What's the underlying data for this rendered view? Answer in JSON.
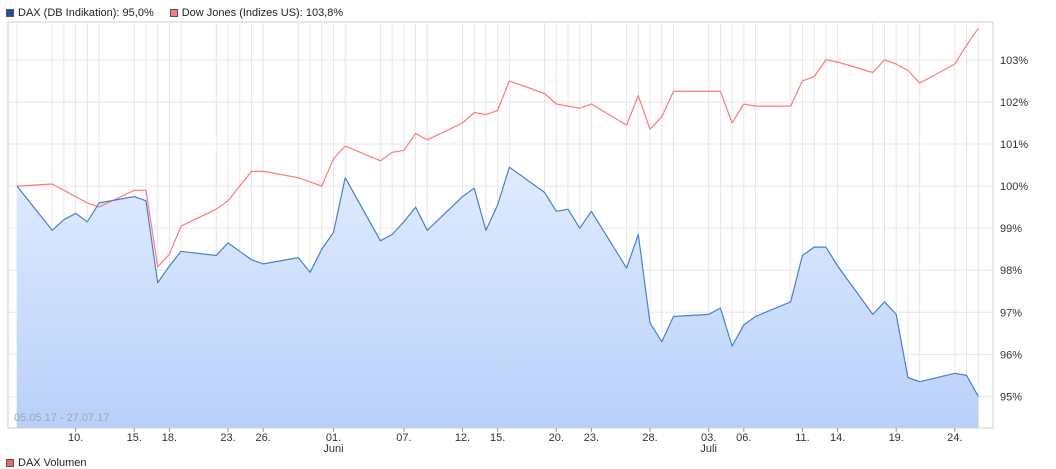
{
  "legend": {
    "dax": {
      "label": "DAX (DB Indikation): 95,0%",
      "color": "#1f4fa6"
    },
    "dow": {
      "label": "Dow Jones (Indizes US): 103,8%",
      "color": "#ff7b7b"
    }
  },
  "date_range": "05.05.17 - 27.07.17",
  "volume_legend": {
    "label": "DAX Volumen",
    "color": "#e8705a"
  },
  "chart_data": {
    "type": "line",
    "x_range": [
      "2017-05-05",
      "2017-07-27"
    ],
    "y_range": [
      94.25,
      103.9
    ],
    "y_ticks": [
      {
        "value": 95,
        "label": "95%"
      },
      {
        "value": 96,
        "label": "96%"
      },
      {
        "value": 97,
        "label": "97%"
      },
      {
        "value": 98,
        "label": "98%"
      },
      {
        "value": 99,
        "label": "99%"
      },
      {
        "value": 100,
        "label": "100%"
      },
      {
        "value": 101,
        "label": "101%"
      },
      {
        "value": 102,
        "label": "102%"
      },
      {
        "value": 103,
        "label": "103%"
      }
    ],
    "x_ticks": [
      {
        "date": "2017-05-10",
        "label": "10.",
        "sub": ""
      },
      {
        "date": "2017-05-15",
        "label": "15.",
        "sub": ""
      },
      {
        "date": "2017-05-18",
        "label": "18.",
        "sub": ""
      },
      {
        "date": "2017-05-23",
        "label": "23.",
        "sub": ""
      },
      {
        "date": "2017-05-26",
        "label": "26.",
        "sub": ""
      },
      {
        "date": "2017-06-01",
        "label": "01.",
        "sub": "Juni"
      },
      {
        "date": "2017-06-07",
        "label": "07.",
        "sub": ""
      },
      {
        "date": "2017-06-12",
        "label": "12.",
        "sub": ""
      },
      {
        "date": "2017-06-15",
        "label": "15.",
        "sub": ""
      },
      {
        "date": "2017-06-20",
        "label": "20.",
        "sub": ""
      },
      {
        "date": "2017-06-23",
        "label": "23.",
        "sub": ""
      },
      {
        "date": "2017-06-28",
        "label": "28.",
        "sub": ""
      },
      {
        "date": "2017-07-03",
        "label": "03.",
        "sub": "Juli"
      },
      {
        "date": "2017-07-06",
        "label": "06.",
        "sub": ""
      },
      {
        "date": "2017-07-11",
        "label": "11.",
        "sub": ""
      },
      {
        "date": "2017-07-14",
        "label": "14.",
        "sub": ""
      },
      {
        "date": "2017-07-19",
        "label": "19.",
        "sub": ""
      },
      {
        "date": "2017-07-24",
        "label": "24.",
        "sub": ""
      }
    ],
    "series": [
      {
        "name": "Dow Jones (Indizes US)",
        "color": "#ff7b7b",
        "points": [
          [
            "2017-05-05",
            100.0
          ],
          [
            "2017-05-08",
            100.05
          ],
          [
            "2017-05-09",
            99.9
          ],
          [
            "2017-05-10",
            99.75
          ],
          [
            "2017-05-11",
            99.6
          ],
          [
            "2017-05-12",
            99.5
          ],
          [
            "2017-05-15",
            99.9
          ],
          [
            "2017-05-16",
            99.9
          ],
          [
            "2017-05-17",
            98.08
          ],
          [
            "2017-05-18",
            98.38
          ],
          [
            "2017-05-19",
            99.05
          ],
          [
            "2017-05-22",
            99.45
          ],
          [
            "2017-05-23",
            99.65
          ],
          [
            "2017-05-24",
            100.0
          ],
          [
            "2017-05-25",
            100.35
          ],
          [
            "2017-05-26",
            100.35
          ],
          [
            "2017-05-29",
            100.2
          ],
          [
            "2017-05-30",
            100.1
          ],
          [
            "2017-05-31",
            100.0
          ],
          [
            "2017-06-01",
            100.65
          ],
          [
            "2017-06-02",
            100.95
          ],
          [
            "2017-06-05",
            100.6
          ],
          [
            "2017-06-06",
            100.8
          ],
          [
            "2017-06-07",
            100.85
          ],
          [
            "2017-06-08",
            101.25
          ],
          [
            "2017-06-09",
            101.1
          ],
          [
            "2017-06-12",
            101.5
          ],
          [
            "2017-06-13",
            101.75
          ],
          [
            "2017-06-14",
            101.7
          ],
          [
            "2017-06-15",
            101.8
          ],
          [
            "2017-06-16",
            102.5
          ],
          [
            "2017-06-19",
            102.2
          ],
          [
            "2017-06-20",
            101.95
          ],
          [
            "2017-06-21",
            101.9
          ],
          [
            "2017-06-22",
            101.85
          ],
          [
            "2017-06-23",
            101.95
          ],
          [
            "2017-06-26",
            101.45
          ],
          [
            "2017-06-27",
            102.15
          ],
          [
            "2017-06-28",
            101.35
          ],
          [
            "2017-06-29",
            101.65
          ],
          [
            "2017-06-30",
            102.25
          ],
          [
            "2017-07-03",
            102.25
          ],
          [
            "2017-07-04",
            102.25
          ],
          [
            "2017-07-05",
            101.5
          ],
          [
            "2017-07-06",
            101.95
          ],
          [
            "2017-07-07",
            101.9
          ],
          [
            "2017-07-10",
            101.9
          ],
          [
            "2017-07-11",
            102.5
          ],
          [
            "2017-07-12",
            102.6
          ],
          [
            "2017-07-13",
            103.0
          ],
          [
            "2017-07-14",
            102.95
          ],
          [
            "2017-07-17",
            102.7
          ],
          [
            "2017-07-18",
            103.0
          ],
          [
            "2017-07-19",
            102.9
          ],
          [
            "2017-07-20",
            102.75
          ],
          [
            "2017-07-21",
            102.45
          ],
          [
            "2017-07-24",
            102.9
          ],
          [
            "2017-07-25",
            103.35
          ],
          [
            "2017-07-26",
            103.75
          ]
        ]
      },
      {
        "name": "DAX (DB Indikation)",
        "color": "#4a7fd0",
        "points": [
          [
            "2017-05-05",
            100.0
          ],
          [
            "2017-05-08",
            98.95
          ],
          [
            "2017-05-09",
            99.2
          ],
          [
            "2017-05-10",
            99.35
          ],
          [
            "2017-05-11",
            99.15
          ],
          [
            "2017-05-12",
            99.6
          ],
          [
            "2017-05-15",
            99.75
          ],
          [
            "2017-05-16",
            99.65
          ],
          [
            "2017-05-17",
            97.7
          ],
          [
            "2017-05-18",
            98.1
          ],
          [
            "2017-05-19",
            98.45
          ],
          [
            "2017-05-22",
            98.35
          ],
          [
            "2017-05-23",
            98.65
          ],
          [
            "2017-05-24",
            98.45
          ],
          [
            "2017-05-25",
            98.25
          ],
          [
            "2017-05-26",
            98.15
          ],
          [
            "2017-05-29",
            98.3
          ],
          [
            "2017-05-30",
            97.95
          ],
          [
            "2017-05-31",
            98.5
          ],
          [
            "2017-06-01",
            98.9
          ],
          [
            "2017-06-02",
            100.2
          ],
          [
            "2017-06-05",
            98.7
          ],
          [
            "2017-06-06",
            98.85
          ],
          [
            "2017-06-07",
            99.15
          ],
          [
            "2017-06-08",
            99.5
          ],
          [
            "2017-06-09",
            98.95
          ],
          [
            "2017-06-12",
            99.75
          ],
          [
            "2017-06-13",
            99.95
          ],
          [
            "2017-06-14",
            98.95
          ],
          [
            "2017-06-15",
            99.55
          ],
          [
            "2017-06-16",
            100.45
          ],
          [
            "2017-06-19",
            99.85
          ],
          [
            "2017-06-20",
            99.4
          ],
          [
            "2017-06-21",
            99.45
          ],
          [
            "2017-06-22",
            99.0
          ],
          [
            "2017-06-23",
            99.4
          ],
          [
            "2017-06-26",
            98.05
          ],
          [
            "2017-06-27",
            98.85
          ],
          [
            "2017-06-28",
            96.75
          ],
          [
            "2017-06-29",
            96.3
          ],
          [
            "2017-06-30",
            96.9
          ],
          [
            "2017-07-03",
            96.95
          ],
          [
            "2017-07-04",
            97.1
          ],
          [
            "2017-07-05",
            96.2
          ],
          [
            "2017-07-06",
            96.7
          ],
          [
            "2017-07-07",
            96.9
          ],
          [
            "2017-07-10",
            97.25
          ],
          [
            "2017-07-11",
            98.35
          ],
          [
            "2017-07-12",
            98.55
          ],
          [
            "2017-07-13",
            98.55
          ],
          [
            "2017-07-14",
            98.1
          ],
          [
            "2017-07-17",
            96.95
          ],
          [
            "2017-07-18",
            97.25
          ],
          [
            "2017-07-19",
            96.95
          ],
          [
            "2017-07-20",
            95.45
          ],
          [
            "2017-07-21",
            95.35
          ],
          [
            "2017-07-24",
            95.55
          ],
          [
            "2017-07-25",
            95.5
          ],
          [
            "2017-07-26",
            95.0
          ]
        ]
      }
    ],
    "grid": true,
    "legend_position": "top-left"
  }
}
